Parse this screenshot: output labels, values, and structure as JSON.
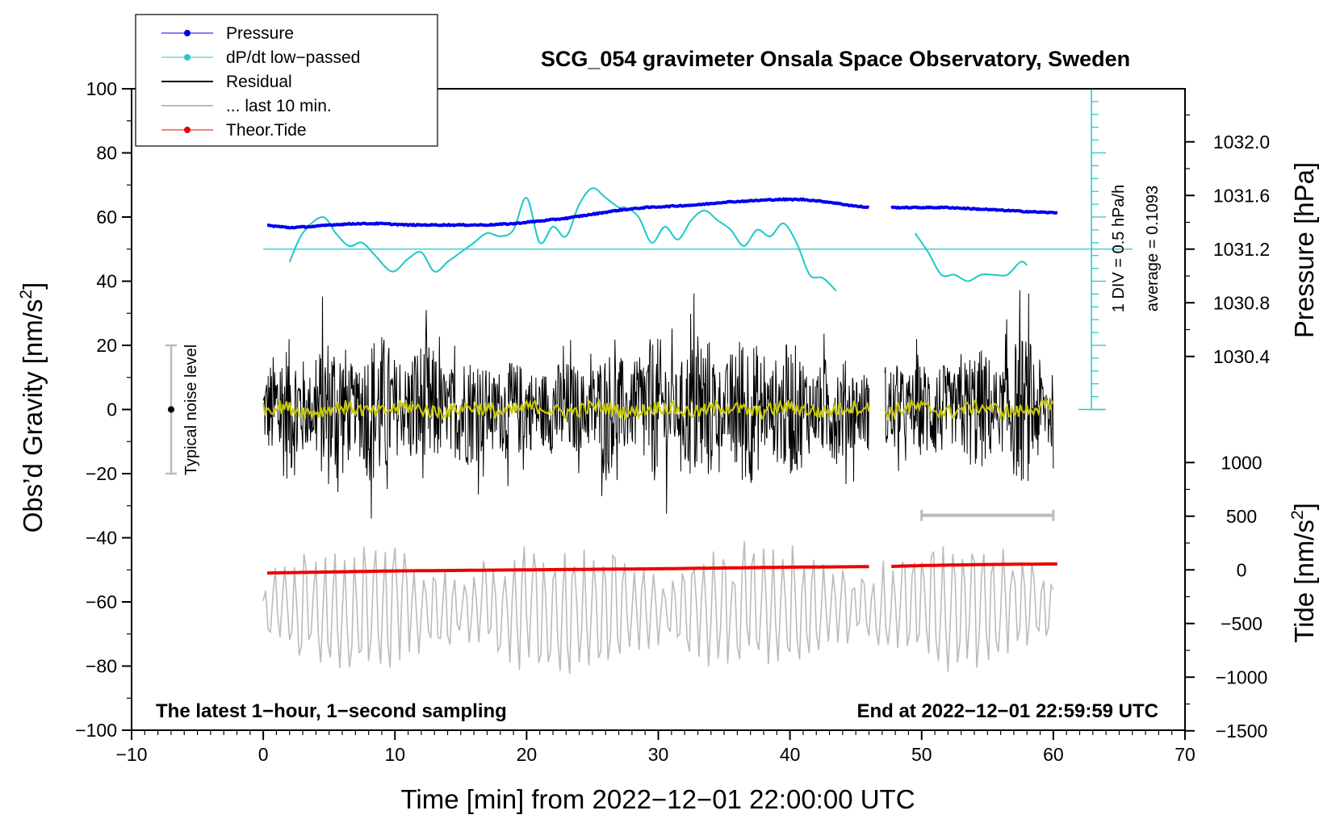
{
  "chart_data": {
    "type": "line",
    "title": "SCG_054 gravimeter Onsala Space Observatory, Sweden",
    "xlabel": "Time [min] from 2022−12−01 22:00:00 UTC",
    "ylabel_left_main": "Obs’d Gravity [nm/s",
    "ylabel_left_sup": "2",
    "ylabel_left_end": "]",
    "ylabel_right_pressure": "Pressure [hPa]",
    "ylabel_right_tide_main": "Tide [nm/s",
    "ylabel_right_tide_sup": "2",
    "ylabel_right_tide_end": "]",
    "xlim": [
      -10,
      70
    ],
    "ylim": [
      -100,
      100
    ],
    "pressure_lim": [
      1030.0,
      1032.4
    ],
    "tide_lim": [
      -1500,
      1500
    ],
    "x_ticks": [
      "−10",
      "0",
      "10",
      "20",
      "30",
      "40",
      "50",
      "60",
      "70"
    ],
    "y_ticks": [
      "−100",
      "−80",
      "−60",
      "−40",
      "−20",
      "0",
      "20",
      "40",
      "60",
      "80",
      "100"
    ],
    "pressure_ticks": [
      "1030.4",
      "1030.8",
      "1031.2",
      "1031.6",
      "1032.0"
    ],
    "tide_ticks": [
      "−1500",
      "−1000",
      "−500",
      "0",
      "500",
      "1000"
    ],
    "corner_left": "The latest 1−hour, 1−second sampling",
    "corner_right": "End at 2022−12−01 22:59:59 UTC",
    "noise_label": "Typical noise level",
    "noise_range": [
      -20,
      20
    ],
    "div_label": "1 DIV = 0.5 hPa/h",
    "average_label": "average = 0.1093",
    "legend": [
      {
        "label": "Pressure",
        "color": "#0000ee",
        "marker": true
      },
      {
        "label": "dP/dt low−passed",
        "color": "#1ec8c8",
        "marker": true
      },
      {
        "label": "Residual",
        "color": "#000000",
        "marker": false
      },
      {
        "label": "... last 10 min.",
        "color": "#bbbbbb",
        "marker": false
      },
      {
        "label": "Theor.Tide",
        "color": "#ee0000",
        "marker": true
      }
    ],
    "colors": {
      "pressure": "#0000ee",
      "dpdt": "#1ec8c8",
      "residual": "#000000",
      "residual_smooth": "#c8c80a",
      "last10": "#bbbbbb",
      "tide": "#ee0000"
    },
    "gaps": [
      [
        46,
        47.7
      ]
    ],
    "pressure_series": {
      "x": [
        0,
        2,
        4,
        5,
        7,
        9,
        11,
        13,
        15,
        17,
        19,
        21,
        23,
        25,
        27,
        29,
        31,
        33,
        35,
        37,
        39,
        41,
        43,
        45,
        46,
        47.7,
        50,
        52,
        54,
        56,
        58,
        60.3
      ],
      "y": [
        1031.38,
        1031.36,
        1031.37,
        1031.38,
        1031.39,
        1031.39,
        1031.38,
        1031.38,
        1031.38,
        1031.38,
        1031.39,
        1031.41,
        1031.43,
        1031.46,
        1031.49,
        1031.51,
        1031.52,
        1031.53,
        1031.55,
        1031.56,
        1031.57,
        1031.57,
        1031.55,
        1031.52,
        1031.51,
        1031.51,
        1031.51,
        1031.51,
        1031.5,
        1031.49,
        1031.48,
        1031.47
      ]
    },
    "dpdt_series": {
      "x": [
        2,
        3,
        4.5,
        5.5,
        6.5,
        7.5,
        8.5,
        9.8,
        11,
        12,
        13,
        14,
        15,
        16,
        17,
        18,
        19,
        20,
        21,
        22,
        23,
        24,
        25,
        26,
        27,
        27.5,
        28.5,
        29.5,
        30.5,
        31.5,
        32.5,
        33.5,
        34.5,
        35.5,
        36.5,
        37.5,
        38.5,
        39.5,
        40.5,
        41.5,
        42.5,
        43.5,
        49.5,
        50.5,
        51.5,
        52.5,
        53.5,
        54.5,
        55.5,
        56.5,
        57.5,
        58
      ],
      "y": [
        46,
        55,
        60,
        55,
        51,
        52,
        48,
        43,
        47,
        49,
        43,
        46,
        49,
        52,
        55,
        54,
        56,
        66,
        52,
        57,
        54,
        64,
        69,
        66,
        63,
        63,
        60,
        52,
        57,
        53,
        59,
        62,
        59,
        56,
        51,
        56,
        54,
        58,
        52,
        42,
        41,
        37,
        55,
        49,
        42,
        42,
        40,
        42,
        42,
        42,
        46,
        45
      ]
    },
    "dpdt_baseline": 50,
    "tide_series": {
      "x": [
        0,
        10,
        20,
        30,
        40,
        46,
        47.7,
        50,
        55,
        60.3
      ],
      "y": [
        -30,
        -10,
        0,
        10,
        25,
        30,
        32,
        40,
        50,
        55
      ]
    },
    "residual_range": {
      "x_start": 0,
      "x_end": 60,
      "amplitude": 20
    },
    "last10_bar": {
      "x_start": 50,
      "x_end": 60,
      "y": -33
    }
  }
}
